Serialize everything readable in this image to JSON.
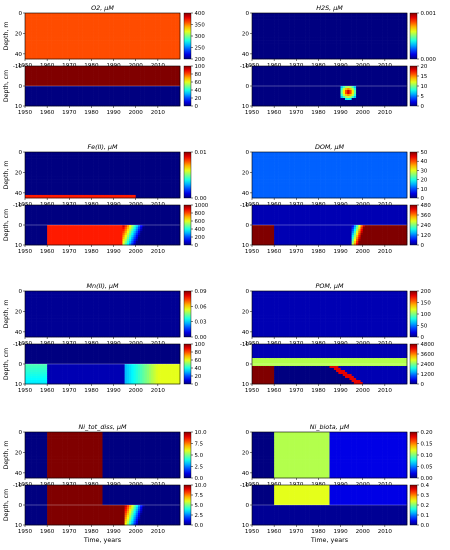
{
  "figure": {
    "xlabel": "Time, years",
    "upper_ylabel": "Depth, m",
    "lower_ylabel": "Depth, cm",
    "x_ticks": [
      "1950",
      "1960",
      "1970",
      "1980",
      "1990",
      "2000",
      "2010"
    ],
    "upper_y_ticks": [
      "0",
      "20",
      "40"
    ],
    "lower_y_ticks": [
      "-10",
      "0",
      "10"
    ]
  },
  "chart_data": [
    {
      "type": "heatmap",
      "title": "O2, μM",
      "xlim": [
        1950,
        2020
      ],
      "upper": {
        "ylim": [
          0,
          45
        ],
        "colorbar_ticks": [
          "400",
          "350",
          "300",
          "250",
          "200"
        ],
        "vmin": 200,
        "vmax": 400,
        "pattern": "seasonal stripes across whole water column, 1950-2018"
      },
      "lower": {
        "ylim": [
          -10,
          10
        ],
        "colorbar_ticks": [
          "100",
          "80",
          "60",
          "40",
          "20",
          "0"
        ],
        "vmin": 0,
        "vmax": 100,
        "pattern": "high O2 (~100) in water above 0 cm, ~0 in sediment below 0 cm"
      }
    },
    {
      "type": "heatmap",
      "title": "H2S, μM",
      "xlim": [
        1950,
        2020
      ],
      "upper": {
        "ylim": [
          0,
          45
        ],
        "colorbar_ticks": [
          "0.001",
          "0.000"
        ],
        "vmin": 0,
        "vmax": 0.001,
        "pattern": "0 everywhere"
      },
      "lower": {
        "ylim": [
          -10,
          10
        ],
        "colorbar_ticks": [
          "20",
          "15",
          "10",
          "5",
          "0"
        ],
        "vmin": 0,
        "vmax": 20,
        "pattern": "plume in sediment below 0 cm around 1990-1997, max near 1993"
      }
    },
    {
      "type": "heatmap",
      "title": "Fe(II), μM",
      "xlim": [
        1950,
        2020
      ],
      "upper": {
        "ylim": [
          0,
          45
        ],
        "colorbar_ticks": [
          "0.01",
          "0.00"
        ],
        "vmin": 0,
        "vmax": 0.01,
        "pattern": "seasonal spikes near bottom (~40 m) 1960-1985"
      },
      "lower": {
        "ylim": [
          -10,
          10
        ],
        "colorbar_ticks": [
          "1000",
          "800",
          "600",
          "400",
          "200",
          "0"
        ],
        "vmin": 0,
        "vmax": 1000,
        "pattern": "high Fe(II) (~1000) in sediment 1960-1994, decay to ~0 by 2005"
      }
    },
    {
      "type": "heatmap",
      "title": "DOM, μM",
      "xlim": [
        1950,
        2020
      ],
      "upper": {
        "ylim": [
          0,
          45
        ],
        "colorbar_ticks": [
          "50",
          "40",
          "30",
          "20",
          "10",
          "0"
        ],
        "vmin": 0,
        "vmax": 50,
        "pattern": "seasonal stripes across whole water column"
      },
      "lower": {
        "ylim": [
          -10,
          10
        ],
        "colorbar_ticks": [
          "480",
          "360",
          "240",
          "120",
          "0"
        ],
        "vmin": 0,
        "vmax": 480,
        "pattern": "high DOM (~480) in sediment 1950-1960 and 2000-2018, low 1960-1995"
      }
    },
    {
      "type": "heatmap",
      "title": "Mn(II), μM",
      "xlim": [
        1950,
        2020
      ],
      "upper": {
        "ylim": [
          0,
          45
        ],
        "colorbar_ticks": [
          "0.09",
          "0.06",
          "0.03",
          "0.00"
        ],
        "vmin": 0,
        "vmax": 0.09,
        "pattern": "~0 with small seasonal spikes near bottom"
      },
      "lower": {
        "ylim": [
          -10,
          10
        ],
        "colorbar_ticks": [
          "100",
          "80",
          "60",
          "40",
          "20",
          "0"
        ],
        "vmin": 0,
        "vmax": 100,
        "pattern": "moderate Mn(II) (~40-60) in sediment 1950-1960 and from ~1995, ~0 1960-1990"
      }
    },
    {
      "type": "heatmap",
      "title": "POM, μM",
      "xlim": [
        1950,
        2020
      ],
      "upper": {
        "ylim": [
          0,
          45
        ],
        "colorbar_ticks": [
          "200",
          "150",
          "100",
          "50",
          "0"
        ],
        "vmin": 0,
        "vmax": 200,
        "pattern": "seasonal stripes across whole water column"
      },
      "lower": {
        "ylim": [
          -10,
          10
        ],
        "colorbar_ticks": [
          "4800",
          "3600",
          "2400",
          "1200",
          "0"
        ],
        "vmin": 0,
        "vmax": 4800,
        "pattern": "high POM (~4800) in sediment 1950-1960; diagonal front from ~1985 to ~2000"
      }
    },
    {
      "type": "heatmap",
      "title": "Ni_tot_diss, μM",
      "xlim": [
        1950,
        2020
      ],
      "upper": {
        "ylim": [
          0,
          45
        ],
        "colorbar_ticks": [
          "10.0",
          "7.5",
          "5.0",
          "2.5",
          "0.0"
        ],
        "vmin": 0,
        "vmax": 10,
        "pattern": "~10 throughout water column 1960-1985, 0 otherwise"
      },
      "lower": {
        "ylim": [
          -10,
          10
        ],
        "colorbar_ticks": [
          "10.0",
          "7.5",
          "5.0",
          "2.5",
          "0.0"
        ],
        "vmin": 0,
        "vmax": 10,
        "pattern": "~10 in water 1960-1985; in sediment ~10 1960-1995 decaying to ~0 by 2005"
      }
    },
    {
      "type": "heatmap",
      "title": "Ni_biota, μM",
      "xlim": [
        1950,
        2020
      ],
      "upper": {
        "ylim": [
          0,
          45
        ],
        "colorbar_ticks": [
          "0.20",
          "0.15",
          "0.10",
          "0.05",
          "0.00"
        ],
        "vmin": 0,
        "vmax": 0.2,
        "pattern": "stripes ~0.15-0.20 1960-1985, weaker stripes ~0.05 after 1985"
      },
      "lower": {
        "ylim": [
          -10,
          10
        ],
        "colorbar_ticks": [
          "0.4",
          "0.3",
          "0.2",
          "0.1",
          "0.0"
        ],
        "vmin": 0,
        "vmax": 0.4,
        "pattern": "stripes ~0.3-0.4 in water 1960-1985, weak after; sediment ~0"
      }
    }
  ]
}
